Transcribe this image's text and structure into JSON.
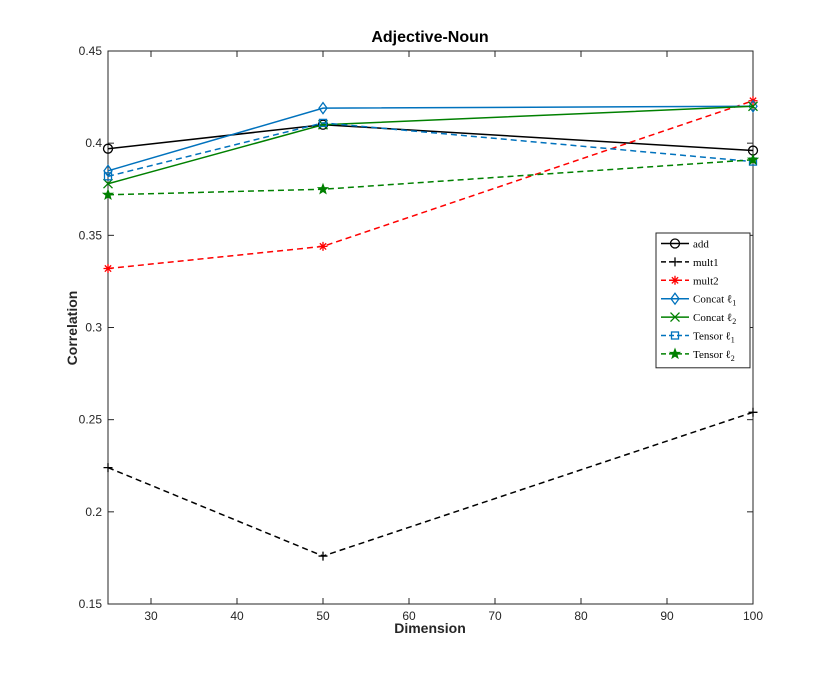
{
  "chart_data": {
    "type": "line",
    "title": "Adjective-Noun",
    "xlabel": "Dimension",
    "ylabel": "Correlation",
    "x": [
      25,
      50,
      100
    ],
    "xlim": [
      25,
      100
    ],
    "ylim": [
      0.15,
      0.45
    ],
    "xticks": [
      "30",
      "40",
      "50",
      "60",
      "70",
      "80",
      "90",
      "100"
    ],
    "xtick_values": [
      30,
      40,
      50,
      60,
      70,
      80,
      90,
      100
    ],
    "yticks": [
      "0.15",
      "0.2",
      "0.25",
      "0.3",
      "0.35",
      "0.4",
      "0.45"
    ],
    "ytick_values": [
      0.15,
      0.2,
      0.25,
      0.3,
      0.35,
      0.4,
      0.45
    ],
    "grid": false,
    "legend_position": "right",
    "series": [
      {
        "name": "add",
        "legend_base": "add",
        "legend_sub": "",
        "values": [
          0.397,
          0.41,
          0.396
        ],
        "color": "#000000",
        "dash": "solid",
        "marker": "circle"
      },
      {
        "name": "mult1",
        "legend_base": "mult1",
        "legend_sub": "",
        "values": [
          0.224,
          0.176,
          0.254
        ],
        "color": "#000000",
        "dash": "dashed",
        "marker": "plus"
      },
      {
        "name": "mult2",
        "legend_base": "mult2",
        "legend_sub": "",
        "values": [
          0.332,
          0.344,
          0.423
        ],
        "color": "#ff0000",
        "dash": "dashed",
        "marker": "asterisk"
      },
      {
        "name": "Concat ℓ1",
        "legend_base": "Concat ℓ",
        "legend_sub": "1",
        "values": [
          0.385,
          0.419,
          0.42
        ],
        "color": "#0072bd",
        "dash": "solid",
        "marker": "diamond"
      },
      {
        "name": "Concat ℓ2",
        "legend_base": "Concat ℓ",
        "legend_sub": "2",
        "values": [
          0.378,
          0.41,
          0.42
        ],
        "color": "#008000",
        "dash": "solid",
        "marker": "x"
      },
      {
        "name": "Tensor ℓ1",
        "legend_base": "Tensor ℓ",
        "legend_sub": "1",
        "values": [
          0.382,
          0.411,
          0.39
        ],
        "color": "#0072bd",
        "dash": "dashed",
        "marker": "square"
      },
      {
        "name": "Tensor ℓ2",
        "legend_base": "Tensor ℓ",
        "legend_sub": "2",
        "values": [
          0.372,
          0.375,
          0.391
        ],
        "color": "#008000",
        "dash": "dashed",
        "marker": "star"
      }
    ]
  }
}
